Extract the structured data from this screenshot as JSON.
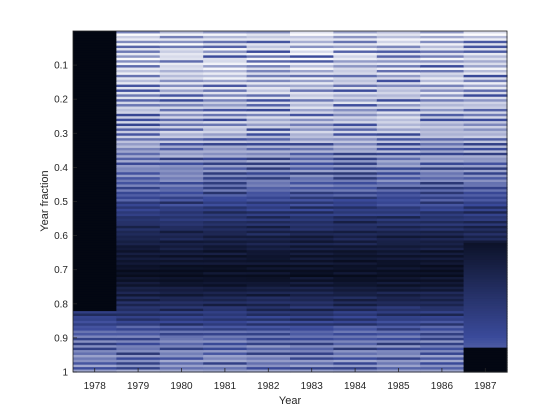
{
  "chart_data": {
    "type": "heatmap",
    "title": "",
    "xlabel": "Year",
    "ylabel": "Year fraction",
    "x_categories": [
      "1978",
      "1979",
      "1980",
      "1981",
      "1982",
      "1983",
      "1984",
      "1985",
      "1986",
      "1987"
    ],
    "y_ticks": [
      "0.1",
      "0.2",
      "0.3",
      "0.4",
      "0.5",
      "0.6",
      "0.7",
      "0.8",
      "0.9",
      "1"
    ],
    "y_tick_values": [
      0.1,
      0.2,
      0.3,
      0.4,
      0.5,
      0.6,
      0.7,
      0.8,
      0.9,
      1.0
    ],
    "ylim": [
      0,
      1
    ],
    "y_direction": "reversed",
    "colormap": "bone-like (dark navy to pale cyan/white)",
    "colors": {
      "low": "#030712",
      "mid": "#3a4a9a",
      "high": "#ffffff"
    },
    "row_profile": {
      "y": [
        0.0,
        0.1,
        0.3,
        0.45,
        0.55,
        0.65,
        0.72,
        0.8,
        0.9,
        1.0
      ],
      "intensity": [
        0.92,
        0.9,
        0.82,
        0.62,
        0.35,
        0.12,
        0.05,
        0.28,
        0.62,
        0.72
      ]
    },
    "column_missing_ranges": [
      {
        "year": "1978",
        "from": 0.0,
        "to": 0.82
      },
      {
        "year": "1987",
        "from": 0.93,
        "to": 1.0
      }
    ],
    "column_1987_low_band": {
      "from": 0.62,
      "to": 0.93,
      "intensity_top": 0.08,
      "intensity_bottom": 0.55
    },
    "grid": false,
    "legend": "none"
  }
}
